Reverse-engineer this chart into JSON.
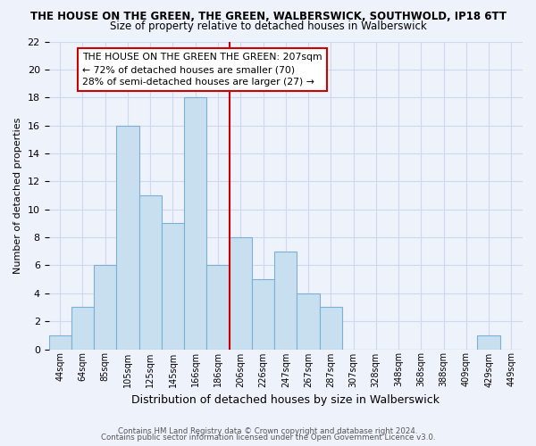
{
  "title": "THE HOUSE ON THE GREEN, THE GREEN, WALBERSWICK, SOUTHWOLD, IP18 6TT",
  "subtitle": "Size of property relative to detached houses in Walberswick",
  "xlabel": "Distribution of detached houses by size in Walberswick",
  "ylabel": "Number of detached properties",
  "bar_labels": [
    "44sqm",
    "64sqm",
    "85sqm",
    "105sqm",
    "125sqm",
    "145sqm",
    "166sqm",
    "186sqm",
    "206sqm",
    "226sqm",
    "247sqm",
    "267sqm",
    "287sqm",
    "307sqm",
    "328sqm",
    "348sqm",
    "368sqm",
    "388sqm",
    "409sqm",
    "429sqm",
    "449sqm"
  ],
  "bar_values": [
    1,
    3,
    6,
    16,
    11,
    9,
    18,
    6,
    8,
    5,
    7,
    4,
    3,
    0,
    0,
    0,
    0,
    0,
    0,
    1,
    0
  ],
  "bar_color": "#c8dff0",
  "bar_edge_color": "#7ab0d4",
  "vline_x_index": 8,
  "vline_color": "#cc0000",
  "annotation_text": "THE HOUSE ON THE GREEN THE GREEN: 207sqm\n← 72% of detached houses are smaller (70)\n28% of semi-detached houses are larger (27) →",
  "annotation_box_color": "#ffffff",
  "annotation_box_edge": "#cc0000",
  "ylim": [
    0,
    22
  ],
  "yticks": [
    0,
    2,
    4,
    6,
    8,
    10,
    12,
    14,
    16,
    18,
    20,
    22
  ],
  "footer_line1": "Contains HM Land Registry data © Crown copyright and database right 2024.",
  "footer_line2": "Contains public sector information licensed under the Open Government Licence v3.0.",
  "bg_color": "#eef2fb",
  "grid_color": "#d0d8ee",
  "title_fontsize": 8.5,
  "subtitle_fontsize": 8.5,
  "ylabel_fontsize": 8,
  "xlabel_fontsize": 9,
  "tick_fontsize": 7,
  "annot_fontsize": 7.8
}
